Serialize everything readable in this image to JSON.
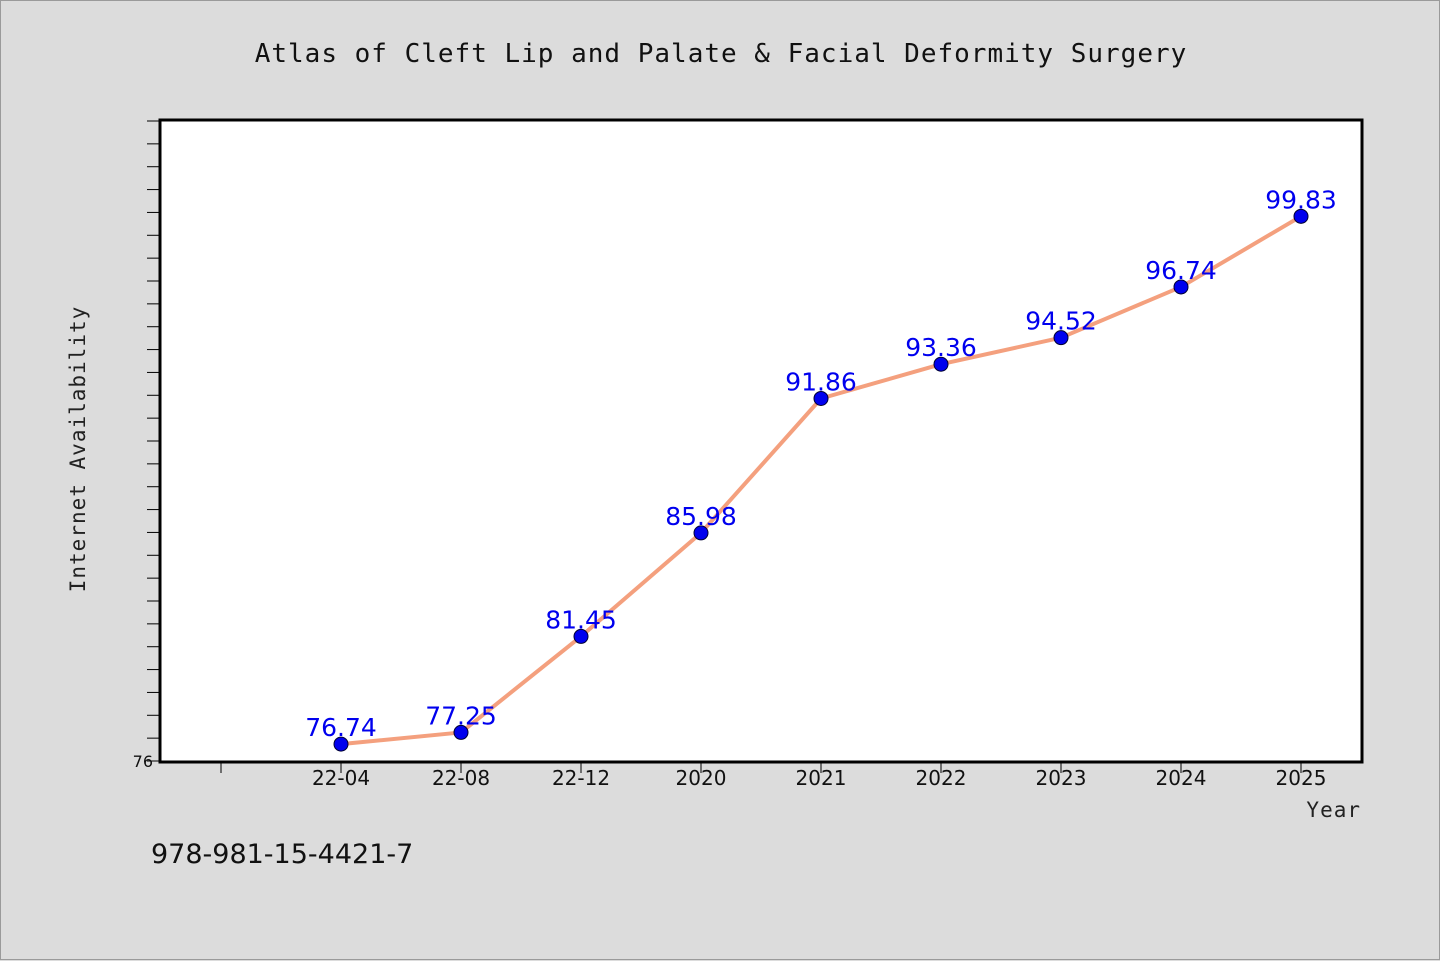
{
  "chart_data": {
    "type": "line",
    "title": "Atlas of Cleft Lip and Palate & Facial Deformity Surgery",
    "xlabel": "Year",
    "ylabel": "Internet Availability",
    "categories": [
      "22-04",
      "22-08",
      "22-12",
      "2020",
      "2021",
      "2022",
      "2023",
      "2024",
      "2025"
    ],
    "values": [
      76.74,
      77.25,
      81.45,
      85.98,
      91.86,
      93.36,
      94.52,
      96.74,
      99.83
    ],
    "data_labels": [
      "76.74",
      "77.25",
      "81.45",
      "85.98",
      "91.86",
      "93.36",
      "94.52",
      "96.74",
      "99.83"
    ],
    "ylim": [
      76,
      104
    ],
    "y_tick_label_min": "76",
    "grid": false,
    "line_color": "#f4a07e",
    "marker_color": "#0000ee",
    "label_color": "#0000ee"
  },
  "footer_note": "978-981-15-4421-7"
}
